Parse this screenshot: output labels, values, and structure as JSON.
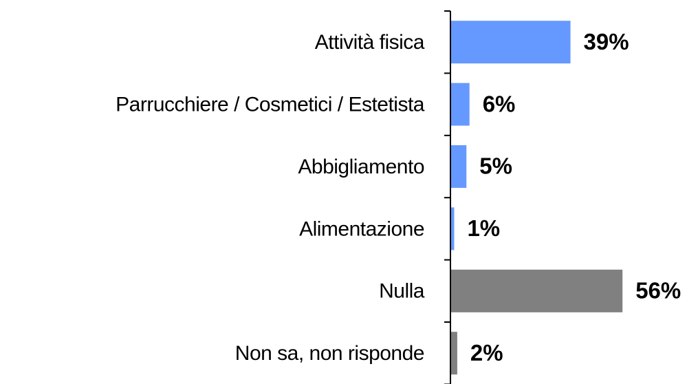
{
  "chart_data": {
    "type": "hbar",
    "categories": [
      "Attività fisica",
      "Parrucchiere / Cosmetici / Estetista",
      "Abbigliamento",
      "Alimentazione",
      "Nulla",
      "Non sa, non risponde"
    ],
    "values": [
      39,
      6,
      5,
      1,
      56,
      2
    ],
    "value_labels": [
      "39%",
      "6%",
      "5%",
      "1%",
      "56%",
      "2%"
    ],
    "colors": [
      "#6699ff",
      "#6699ff",
      "#6699ff",
      "#6699ff",
      "#808080",
      "#808080"
    ]
  }
}
